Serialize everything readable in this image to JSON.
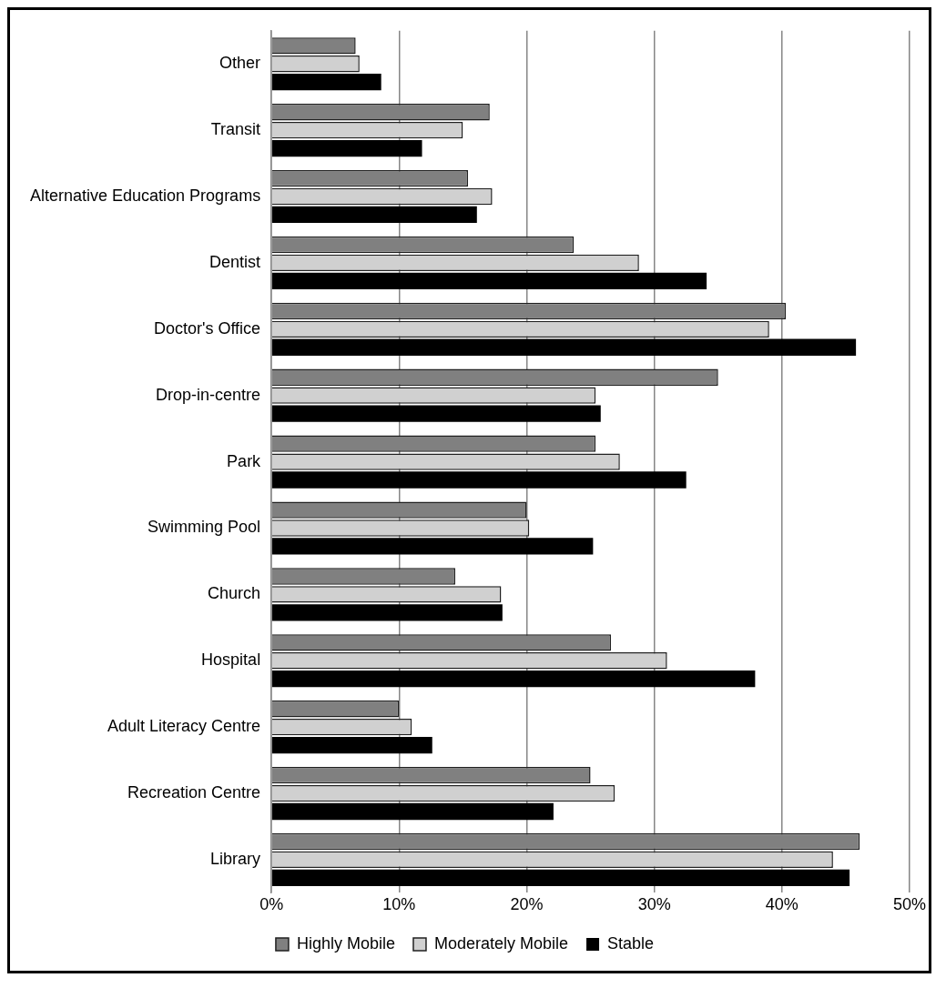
{
  "chart_data": {
    "type": "bar",
    "orientation": "horizontal",
    "categories": [
      "Other",
      "Transit",
      "Alternative Education Programs",
      "Dentist",
      "Doctor's Office",
      "Drop-in-centre",
      "Park",
      "Swimming Pool",
      "Church",
      "Hospital",
      "Adult Literacy Centre",
      "Recreation Centre",
      "Library"
    ],
    "series": [
      {
        "name": "Highly Mobile",
        "color": "#808080",
        "values": [
          6.6,
          17.1,
          15.4,
          23.7,
          40.3,
          35.0,
          25.4,
          20.0,
          14.4,
          26.6,
          10.0,
          25.0,
          46.1
        ]
      },
      {
        "name": "Moderately Mobile",
        "color": "#d0d0d0",
        "values": [
          6.9,
          15.0,
          17.3,
          28.8,
          39.0,
          25.4,
          27.3,
          20.2,
          18.0,
          31.0,
          11.0,
          26.9,
          44.0
        ]
      },
      {
        "name": "Stable",
        "color": "#000000",
        "values": [
          8.6,
          11.8,
          16.1,
          34.1,
          45.8,
          25.8,
          32.5,
          25.2,
          18.1,
          37.9,
          12.6,
          22.1,
          45.3
        ]
      }
    ],
    "xlim": [
      0,
      50
    ],
    "xticks": [
      {
        "value": 0,
        "label": "0%"
      },
      {
        "value": 10,
        "label": "10%"
      },
      {
        "value": 20,
        "label": "20%"
      },
      {
        "value": 30,
        "label": "30%"
      },
      {
        "value": 40,
        "label": "40%"
      },
      {
        "value": 50,
        "label": "50%"
      }
    ],
    "grid": "x",
    "legend": "bottom"
  }
}
